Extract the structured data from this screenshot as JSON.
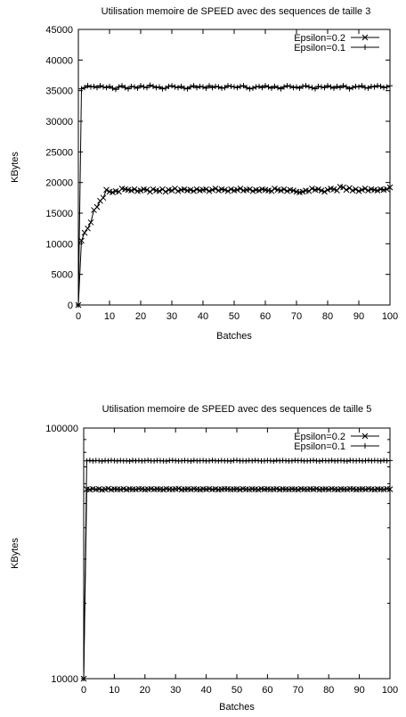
{
  "chart_data": [
    {
      "type": "line",
      "title": "Utilisation memoire de SPEED avec des sequences de taille 3",
      "xlabel": "Batches",
      "ylabel": "KBytes",
      "xlim": [
        0,
        100
      ],
      "ylim": [
        0,
        45000
      ],
      "yscale": "linear",
      "xticks": [
        "0",
        "10",
        "20",
        "30",
        "40",
        "50",
        "60",
        "70",
        "80",
        "90",
        "100"
      ],
      "yticks": [
        "0",
        "5000",
        "10000",
        "15000",
        "20000",
        "25000",
        "30000",
        "35000",
        "40000",
        "45000"
      ],
      "legend_position": "top-right",
      "grid": false,
      "series": [
        {
          "name": "Epsilon=0.2",
          "marker": "x",
          "x": [
            0,
            1,
            2,
            3,
            4,
            5,
            6,
            7,
            8,
            9,
            10,
            11,
            12,
            13,
            14,
            15,
            16,
            17,
            18,
            19,
            20,
            21,
            22,
            23,
            24,
            25,
            26,
            27,
            28,
            29,
            30,
            31,
            32,
            33,
            34,
            35,
            36,
            37,
            38,
            39,
            40,
            41,
            42,
            43,
            44,
            45,
            46,
            47,
            48,
            49,
            50,
            51,
            52,
            53,
            54,
            55,
            56,
            57,
            58,
            59,
            60,
            61,
            62,
            63,
            64,
            65,
            66,
            67,
            68,
            69,
            70,
            71,
            72,
            73,
            74,
            75,
            76,
            77,
            78,
            79,
            80,
            81,
            82,
            83,
            84,
            85,
            86,
            87,
            88,
            89,
            90,
            91,
            92,
            93,
            94,
            95,
            96,
            97,
            98,
            99,
            100
          ],
          "y": [
            0,
            10500,
            11800,
            12500,
            13500,
            15500,
            16000,
            17000,
            17500,
            18800,
            18500,
            18400,
            18600,
            18500,
            19000,
            18900,
            18800,
            18700,
            18900,
            18600,
            18700,
            18900,
            18800,
            18500,
            18900,
            18700,
            18600,
            18900,
            18500,
            18800,
            18700,
            19000,
            18600,
            18800,
            18900,
            18700,
            18800,
            18600,
            18900,
            18700,
            18800,
            18900,
            18600,
            18800,
            19000,
            18700,
            18900,
            18800,
            18600,
            18900,
            18700,
            18800,
            19000,
            18700,
            18800,
            18900,
            18600,
            18800,
            18700,
            18900,
            18800,
            18700,
            18600,
            19000,
            18800,
            18700,
            18900,
            18600,
            18800,
            18700,
            18500,
            18400,
            18500,
            18700,
            18600,
            19000,
            18800,
            18900,
            18700,
            18500,
            18800,
            19000,
            18900,
            18700,
            19300,
            19200,
            18800,
            19100,
            18700,
            18900,
            18600,
            18800,
            19000,
            18700,
            18900,
            18800,
            18700,
            18900,
            18800,
            18900,
            19200
          ]
        },
        {
          "name": "Epsilon=0.1",
          "marker": "+",
          "x": [
            0,
            1,
            2,
            3,
            4,
            5,
            6,
            7,
            8,
            9,
            10,
            11,
            12,
            13,
            14,
            15,
            16,
            17,
            18,
            19,
            20,
            21,
            22,
            23,
            24,
            25,
            26,
            27,
            28,
            29,
            30,
            31,
            32,
            33,
            34,
            35,
            36,
            37,
            38,
            39,
            40,
            41,
            42,
            43,
            44,
            45,
            46,
            47,
            48,
            49,
            50,
            51,
            52,
            53,
            54,
            55,
            56,
            57,
            58,
            59,
            60,
            61,
            62,
            63,
            64,
            65,
            66,
            67,
            68,
            69,
            70,
            71,
            72,
            73,
            74,
            75,
            76,
            77,
            78,
            79,
            80,
            81,
            82,
            83,
            84,
            85,
            86,
            87,
            88,
            89,
            90,
            91,
            92,
            93,
            94,
            95,
            96,
            97,
            98,
            99,
            100
          ],
          "y": [
            0,
            35300,
            35500,
            35800,
            35600,
            35700,
            35500,
            35800,
            35600,
            35500,
            35700,
            35400,
            35200,
            35600,
            35800,
            35500,
            35300,
            35700,
            35600,
            35400,
            35800,
            35600,
            35500,
            35900,
            35700,
            35500,
            35600,
            35300,
            35400,
            35700,
            35800,
            35600,
            35500,
            35700,
            35400,
            35300,
            35600,
            35800,
            35500,
            35700,
            35600,
            35400,
            35800,
            35500,
            35700,
            35600,
            35400,
            35500,
            35800,
            35700,
            35600,
            35500,
            35700,
            35800,
            35500,
            35300,
            35400,
            35600,
            35700,
            35500,
            35800,
            35600,
            35400,
            35700,
            35500,
            35300,
            35600,
            35800,
            35700,
            35500,
            35600,
            35400,
            35700,
            35800,
            35600,
            35500,
            35300,
            35700,
            35600,
            35500,
            35800,
            35600,
            35400,
            35700,
            35500,
            35800,
            35600,
            35300,
            35500,
            35700,
            35600,
            35800,
            35500,
            35400,
            35700,
            35600,
            35800,
            35700,
            35500,
            35600,
            35800
          ]
        }
      ]
    },
    {
      "type": "line",
      "title": "Utilisation memoire de SPEED avec des sequences de taille 5",
      "xlabel": "Batches",
      "ylabel": "KBytes",
      "xlim": [
        0,
        100
      ],
      "ylim": [
        10000,
        100000
      ],
      "yscale": "log",
      "xticks": [
        "0",
        "10",
        "20",
        "30",
        "40",
        "50",
        "60",
        "70",
        "80",
        "90",
        "100"
      ],
      "yticks": [
        "10000",
        "100000"
      ],
      "legend_position": "top-right",
      "grid": false,
      "series": [
        {
          "name": "Epsilon=0.2",
          "marker": "x",
          "x": [
            0,
            1,
            2,
            3,
            4,
            5,
            6,
            7,
            8,
            9,
            10,
            11,
            12,
            13,
            14,
            15,
            16,
            17,
            18,
            19,
            20,
            21,
            22,
            23,
            24,
            25,
            26,
            27,
            28,
            29,
            30,
            31,
            32,
            33,
            34,
            35,
            36,
            37,
            38,
            39,
            40,
            41,
            42,
            43,
            44,
            45,
            46,
            47,
            48,
            49,
            50,
            51,
            52,
            53,
            54,
            55,
            56,
            57,
            58,
            59,
            60,
            61,
            62,
            63,
            64,
            65,
            66,
            67,
            68,
            69,
            70,
            71,
            72,
            73,
            74,
            75,
            76,
            77,
            78,
            79,
            80,
            81,
            82,
            83,
            84,
            85,
            86,
            87,
            88,
            89,
            90,
            91,
            92,
            93,
            94,
            95,
            96,
            97,
            98,
            99,
            100
          ],
          "y": [
            10000,
            57000,
            56800,
            57200,
            56900,
            57100,
            56700,
            57000,
            57300,
            56800,
            57100,
            57000,
            56900,
            57200,
            56800,
            57100,
            57000,
            56900,
            57200,
            57100,
            56800,
            57000,
            57200,
            56900,
            57100,
            57000,
            56800,
            57200,
            57000,
            56900,
            57100,
            57300,
            56800,
            57000,
            57100,
            56900,
            57200,
            57000,
            56800,
            57100,
            57000,
            57200,
            56900,
            57100,
            56800,
            57000,
            57200,
            57100,
            56900,
            57000,
            57100,
            56800,
            57200,
            57000,
            56900,
            57100,
            57000,
            56800,
            57200,
            57000,
            57100,
            56900,
            57000,
            57200,
            56800,
            57100,
            57000,
            56900,
            57100,
            57000,
            56800,
            57200,
            57000,
            56900,
            57100,
            57000,
            57200,
            56800,
            57000,
            57100,
            56900,
            57200,
            57000,
            56800,
            57100,
            57000,
            56900,
            57200,
            57100,
            56800,
            57000,
            57100,
            56900,
            57200,
            57000,
            56800,
            57100,
            57000,
            56900,
            57200,
            57000
          ]
        },
        {
          "name": "Epsilon=0.1",
          "marker": "+",
          "x": [
            0,
            1,
            2,
            3,
            4,
            5,
            6,
            7,
            8,
            9,
            10,
            11,
            12,
            13,
            14,
            15,
            16,
            17,
            18,
            19,
            20,
            21,
            22,
            23,
            24,
            25,
            26,
            27,
            28,
            29,
            30,
            31,
            32,
            33,
            34,
            35,
            36,
            37,
            38,
            39,
            40,
            41,
            42,
            43,
            44,
            45,
            46,
            47,
            48,
            49,
            50,
            51,
            52,
            53,
            54,
            55,
            56,
            57,
            58,
            59,
            60,
            61,
            62,
            63,
            64,
            65,
            66,
            67,
            68,
            69,
            70,
            71,
            72,
            73,
            74,
            75,
            76,
            77,
            78,
            79,
            80,
            81,
            82,
            83,
            84,
            85,
            86,
            87,
            88,
            89,
            90,
            91,
            92,
            93,
            94,
            95,
            96,
            97,
            98,
            99,
            100
          ],
          "y": [
            10000,
            74000,
            74300,
            73900,
            74200,
            74100,
            73800,
            74200,
            74000,
            74300,
            74100,
            73900,
            74200,
            74000,
            74100,
            73800,
            74300,
            74000,
            74200,
            73900,
            74100,
            74300,
            74000,
            73900,
            74200,
            74100,
            74000,
            73800,
            74200,
            74300,
            74100,
            73900,
            74000,
            74200,
            74100,
            73800,
            74300,
            74000,
            74100,
            74200,
            73900,
            74000,
            74300,
            74100,
            73900,
            74200,
            74000,
            74100,
            73800,
            74200,
            74300,
            74000,
            74100,
            73900,
            74200,
            74000,
            74300,
            74100,
            73900,
            74000,
            74200,
            74100,
            73800,
            74300,
            74000,
            74200,
            74100,
            73900,
            74000,
            74300,
            74100,
            74200,
            73900,
            74000,
            74100,
            74300,
            74000,
            73800,
            74200,
            74100,
            74000,
            74300,
            73900,
            74100,
            74200,
            74000,
            73800,
            74300,
            74100,
            74000,
            74200,
            73900,
            74100,
            74300,
            74000,
            74200,
            74100,
            73900,
            74300,
            74000,
            74200
          ]
        }
      ]
    }
  ]
}
